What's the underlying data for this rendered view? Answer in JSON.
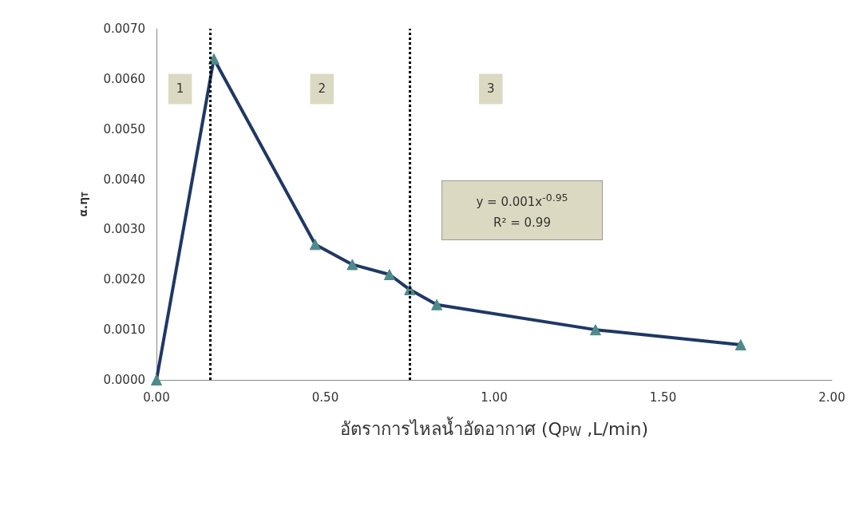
{
  "chart_data": {
    "type": "line",
    "xlabel": "อัตราการไหลน้ำอัดอากาศ (Q$_{PW}$ ,L/min)",
    "ylabel": "α.η$_{T}$",
    "x": [
      0,
      0.17,
      0.47,
      0.58,
      0.69,
      0.75,
      0.83,
      1.3,
      1.73
    ],
    "series": [
      {
        "color": "#1f3864",
        "values": [
          0,
          0.0064,
          0.0027,
          0.0023,
          0.0021,
          0.0018,
          0.0015,
          0.001,
          0.0007
        ]
      }
    ],
    "marker": "triangle",
    "line_style": "solid",
    "xlim": [
      0,
      2
    ],
    "xticks": [
      {
        "value": 0,
        "label": "0.00"
      },
      {
        "value": 0.5,
        "label": "0.50"
      },
      {
        "value": 1,
        "label": "1.00"
      },
      {
        "value": 1.5,
        "label": "1.50"
      },
      {
        "value": 2,
        "label": "2.00"
      }
    ],
    "ylim": [
      0,
      0.007
    ],
    "yticks": [
      {
        "value": 0,
        "label": "0.0000"
      },
      {
        "value": 0.001,
        "label": "0.0010"
      },
      {
        "value": 0.002,
        "label": "0.0020"
      },
      {
        "value": 0.003,
        "label": "0.0030"
      },
      {
        "value": 0.004,
        "label": "0.0040"
      },
      {
        "value": 0.005,
        "label": "0.0050"
      },
      {
        "value": 0.006,
        "label": "0.0060"
      },
      {
        "value": 0.007,
        "label": "0.0070"
      }
    ],
    "ref_lines": [
      {
        "axis": "x",
        "value": 0.16,
        "color": "#000000",
        "line_style": "dotted"
      },
      {
        "axis": "x",
        "value": 0.75,
        "color": "#000000",
        "line_style": "dotted"
      }
    ],
    "annotations": [
      {
        "text": "1",
        "x": 0.07,
        "y": 0.0058
      },
      {
        "text": "2",
        "x": 0.49,
        "y": 0.0058
      },
      {
        "text": "3",
        "x": 0.99,
        "y": 0.0058
      },
      "y = 0.001x$^{-0.95}$",
      "R² = 0.99"
    ]
  }
}
